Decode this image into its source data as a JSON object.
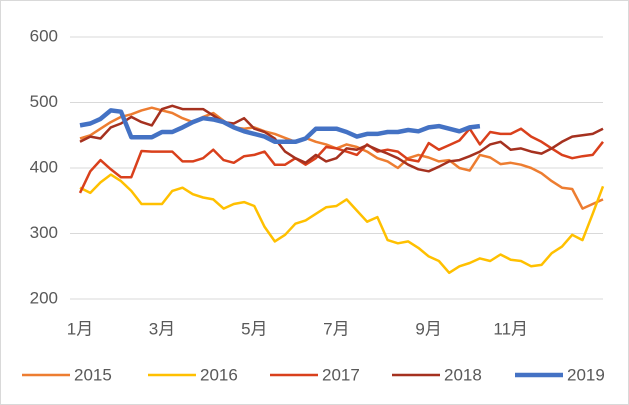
{
  "chart_data": {
    "type": "line",
    "categories": [
      "1月",
      null,
      null,
      null,
      null,
      null,
      null,
      null,
      "3月",
      null,
      null,
      null,
      null,
      null,
      null,
      null,
      null,
      "5月",
      null,
      null,
      null,
      null,
      null,
      null,
      null,
      "7月",
      null,
      null,
      null,
      null,
      null,
      null,
      null,
      null,
      "9月",
      null,
      null,
      null,
      null,
      null,
      null,
      null,
      "11月",
      null,
      null,
      null,
      null,
      null,
      null,
      null,
      null,
      null
    ],
    "series": [
      {
        "name": "2015",
        "color": "#ed7d31",
        "values": [
          445,
          450,
          460,
          470,
          478,
          482,
          488,
          492,
          488,
          484,
          476,
          470,
          478,
          484,
          472,
          462,
          460,
          462,
          456,
          452,
          446,
          440,
          446,
          440,
          436,
          430,
          436,
          432,
          425,
          415,
          410,
          400,
          415,
          420,
          416,
          410,
          412,
          400,
          396,
          420,
          416,
          406,
          408,
          405,
          400,
          392,
          380,
          370,
          368,
          338,
          345,
          352
        ]
      },
      {
        "name": "2016",
        "color": "#ffc000",
        "values": [
          370,
          362,
          378,
          390,
          380,
          365,
          345,
          345,
          345,
          365,
          370,
          360,
          355,
          352,
          338,
          345,
          348,
          342,
          310,
          288,
          298,
          315,
          320,
          330,
          340,
          342,
          352,
          335,
          318,
          325,
          290,
          285,
          288,
          278,
          265,
          258,
          240,
          250,
          255,
          262,
          258,
          268,
          260,
          258,
          250,
          252,
          270,
          280,
          298,
          290,
          330,
          372
        ]
      },
      {
        "name": "2017",
        "color": "#d9401c",
        "values": [
          362,
          395,
          412,
          398,
          386,
          386,
          426,
          425,
          425,
          425,
          410,
          410,
          415,
          428,
          412,
          408,
          418,
          420,
          425,
          405,
          405,
          415,
          405,
          415,
          432,
          430,
          425,
          420,
          436,
          425,
          428,
          425,
          413,
          410,
          438,
          428,
          435,
          442,
          460,
          436,
          455,
          452,
          452,
          460,
          448,
          440,
          430,
          420,
          415,
          418,
          420,
          440
        ]
      },
      {
        "name": "2018",
        "color": "#a5311f",
        "values": [
          440,
          448,
          445,
          462,
          468,
          478,
          470,
          465,
          490,
          495,
          490,
          490,
          490,
          480,
          470,
          468,
          476,
          460,
          455,
          445,
          425,
          415,
          408,
          420,
          410,
          415,
          430,
          428,
          435,
          428,
          422,
          415,
          405,
          398,
          395,
          402,
          410,
          412,
          418,
          425,
          436,
          440,
          428,
          430,
          425,
          422,
          430,
          440,
          448,
          450,
          452,
          460
        ]
      },
      {
        "name": "2019",
        "color": "#4472c4",
        "values": [
          465,
          468,
          475,
          488,
          486,
          447,
          447,
          447,
          455,
          455,
          462,
          470,
          476,
          474,
          470,
          462,
          456,
          452,
          448,
          440,
          440,
          440,
          445,
          460,
          460,
          460,
          455,
          448,
          452,
          452,
          455,
          455,
          458,
          456,
          462,
          464,
          460,
          456,
          462,
          464,
          null,
          null,
          null,
          null,
          null,
          null,
          null,
          null,
          null,
          null,
          null,
          null
        ]
      }
    ],
    "ylim": [
      200,
      600
    ],
    "yticks": [
      200,
      300,
      400,
      500,
      600
    ],
    "grid": true,
    "legend": "bottom"
  }
}
